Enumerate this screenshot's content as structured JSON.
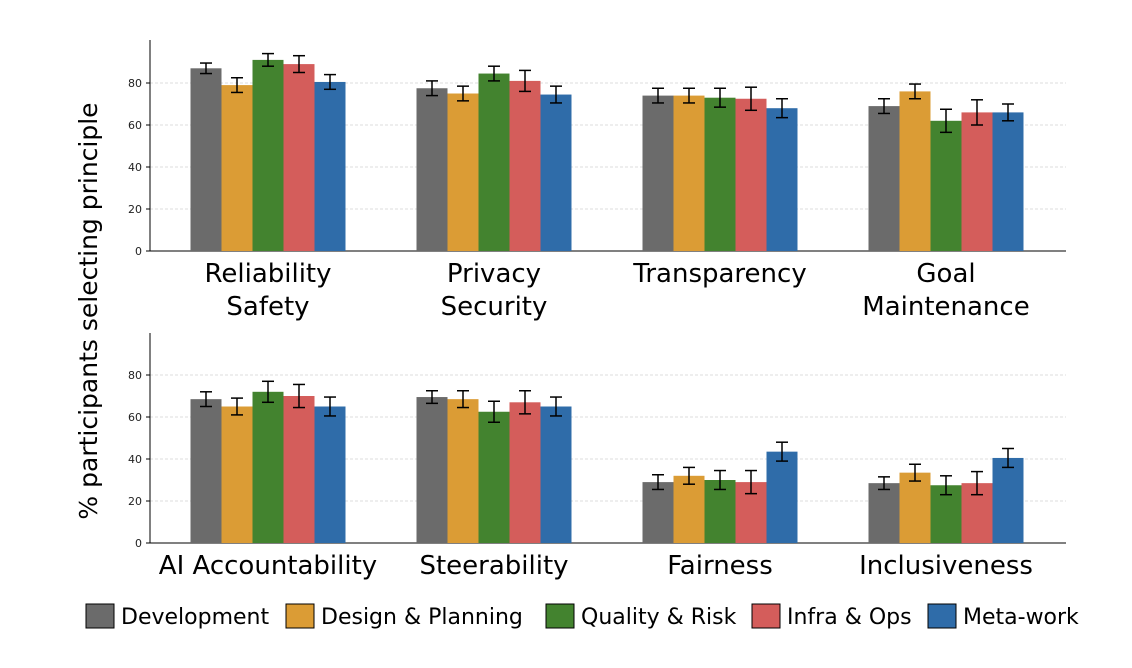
{
  "chart_data": {
    "type": "bar",
    "ylabel": "% participants selecting principle",
    "ylim": [
      0,
      100
    ],
    "yticks": [
      0,
      20,
      40,
      60,
      80
    ],
    "grid": true,
    "legend_placement": "bottom",
    "series_names": [
      "Development",
      "Design & Planning",
      "Quality & Risk",
      "Infra & Ops",
      "Meta-work"
    ],
    "colors": [
      "#6b6b6b",
      "#db9c35",
      "#43832f",
      "#d45d5b",
      "#2f6ca9"
    ],
    "panels": [
      {
        "categories": [
          [
            "Reliability",
            "Safety"
          ],
          [
            "Privacy",
            "Security"
          ],
          [
            "Transparency"
          ],
          [
            "Goal",
            "Maintenance"
          ]
        ],
        "values": [
          [
            87,
            79,
            91,
            89,
            80.5
          ],
          [
            77.5,
            75,
            84.5,
            81,
            74.5
          ],
          [
            74,
            74,
            73,
            72.5,
            68
          ],
          [
            69,
            76,
            62,
            66,
            66
          ]
        ],
        "errors": [
          [
            2.5,
            3.5,
            3,
            4,
            3.5
          ],
          [
            3.5,
            3.5,
            3.5,
            5,
            4
          ],
          [
            3.5,
            3.5,
            4.5,
            5.5,
            4.5
          ],
          [
            3.5,
            3.5,
            5.5,
            6,
            4
          ]
        ]
      },
      {
        "categories": [
          [
            "AI Accountability"
          ],
          [
            "Steerability"
          ],
          [
            "Fairness"
          ],
          [
            "Inclusiveness"
          ]
        ],
        "values": [
          [
            68.5,
            65,
            72,
            70,
            65
          ],
          [
            69.5,
            68.5,
            62.5,
            67,
            65
          ],
          [
            29,
            32,
            30,
            29,
            43.5
          ],
          [
            28.5,
            33.5,
            27.5,
            28.5,
            40.5
          ]
        ],
        "errors": [
          [
            3.5,
            4,
            5,
            5.5,
            4.5
          ],
          [
            3,
            4,
            5,
            5.5,
            4.5
          ],
          [
            3.5,
            4,
            4.5,
            5.5,
            4.5
          ],
          [
            3,
            4,
            4.5,
            5.5,
            4.5
          ]
        ]
      }
    ]
  }
}
